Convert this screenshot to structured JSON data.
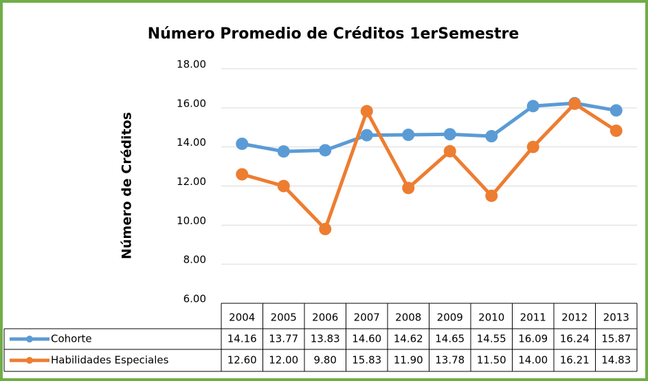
{
  "chart_data": {
    "type": "line",
    "title": "Número Promedio de Créditos 1erSemestre",
    "y_label": "Número de Créditos",
    "categories": [
      "2004",
      "2005",
      "2006",
      "2007",
      "2008",
      "2009",
      "2010",
      "2011",
      "2012",
      "2013"
    ],
    "series": [
      {
        "name": "Cohorte",
        "color": "#5b9bd5",
        "values": [
          14.16,
          13.77,
          13.83,
          14.6,
          14.62,
          14.65,
          14.55,
          16.09,
          16.24,
          15.87
        ],
        "value_labels": [
          "14.16",
          "13.77",
          "13.83",
          "14.60",
          "14.62",
          "14.65",
          "14.55",
          "16.09",
          "16.24",
          "15.87"
        ]
      },
      {
        "name": "Habilidades Especiales",
        "color": "#ed7d31",
        "values": [
          12.6,
          12,
          9.8,
          15.83,
          11.9,
          13.78,
          11.5,
          14,
          16.21,
          14.83
        ],
        "value_labels": [
          "12.60",
          "12.00",
          "9.80",
          "15.83",
          "11.90",
          "13.78",
          "11.50",
          "14.00",
          "16.21",
          "14.83"
        ]
      }
    ],
    "ylim": [
      6,
      18
    ],
    "yticks": [
      {
        "value": 6,
        "label": "6.00"
      },
      {
        "value": 8,
        "label": "8.00"
      },
      {
        "value": 10,
        "label": "10.00"
      },
      {
        "value": 12,
        "label": "12.00"
      },
      {
        "value": 14,
        "label": "14.00"
      },
      {
        "value": 16,
        "label": "16.00"
      },
      {
        "value": 18,
        "label": "18.00"
      }
    ],
    "grid": true,
    "legend": "data-table"
  }
}
